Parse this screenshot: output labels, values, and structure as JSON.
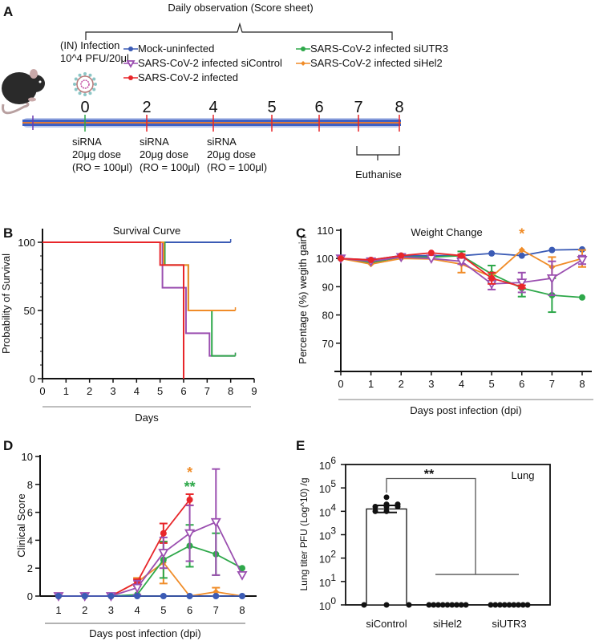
{
  "panel_labels": {
    "a": "A",
    "b": "B",
    "c": "C",
    "d": "D",
    "e": "E"
  },
  "legend": [
    {
      "name": "Mock-uninfected",
      "color": "#3b5bb5",
      "marker": "circle"
    },
    {
      "name": "SARS-CoV-2 infected siControl",
      "color": "#9b4fb0",
      "marker": "triangle-down-open"
    },
    {
      "name": "SARS-CoV-2 infected",
      "color": "#e8262a",
      "marker": "circle"
    },
    {
      "name": "SARS-CoV-2 infected siUTR3",
      "color": "#2ea84a",
      "marker": "circle"
    },
    {
      "name": "SARS-CoV-2 infected siHel2",
      "color": "#f08c28",
      "marker": "diamond"
    }
  ],
  "panel_a": {
    "observation_title": "Daily observation (Score sheet)",
    "infection_line1": "(IN) Infection",
    "infection_line2": "10^4 PFU/20μl",
    "timeline_days": [
      "0",
      "2",
      "4",
      "5",
      "6",
      "7",
      "8"
    ],
    "sirna_doses": [
      {
        "l1": "siRNA",
        "l2": "20μg dose",
        "l3": "(RO = 100μl)"
      },
      {
        "l1": "siRNA",
        "l2": "20μg dose",
        "l3": "(RO = 100μl)"
      },
      {
        "l1": "siRNA",
        "l2": "20μg dose",
        "l3": "(RO = 100μl)"
      }
    ],
    "euthanise": "Euthanise",
    "colors": {
      "bar": "#3d5fc4",
      "bar_center": "#e07a3a",
      "tick": "#e8262a",
      "day0_tick": "#2ea84a"
    }
  },
  "chart_data": [
    {
      "type": "line",
      "style": "step",
      "title": "Survival Curve",
      "xlabel": "Days",
      "ylabel": "Probability of Survival",
      "xlim": [
        0,
        9
      ],
      "ylim": [
        0,
        100
      ],
      "xticks": [
        0,
        1,
        2,
        3,
        4,
        5,
        6,
        7,
        8,
        9
      ],
      "yticks": [
        0,
        50,
        100
      ],
      "series": [
        {
          "name": "Mock-uninfected",
          "x": [
            0,
            8
          ],
          "y": [
            100,
            100
          ]
        },
        {
          "name": "SARS-CoV-2 infected siControl",
          "x": [
            0,
            5.1,
            6.1,
            7.1,
            8.2
          ],
          "y": [
            100,
            66.7,
            33.3,
            16.7,
            16.7
          ]
        },
        {
          "name": "SARS-CoV-2 infected siUTR3",
          "x": [
            0,
            5.2,
            6.2,
            7.2,
            8.2
          ],
          "y": [
            100,
            83.3,
            50,
            16.7,
            16.7
          ]
        },
        {
          "name": "SARS-CoV-2 infected siHel2",
          "x": [
            0,
            5.15,
            6.2,
            8.2
          ],
          "y": [
            100,
            83.3,
            50,
            50
          ]
        },
        {
          "name": "SARS-CoV-2 infected",
          "x": [
            0,
            5.0,
            6.0
          ],
          "y": [
            100,
            83.3,
            0
          ]
        }
      ]
    },
    {
      "type": "line",
      "title": "Weight Change",
      "xlabel": "Days post infection (dpi)",
      "ylabel": "Percentage (%) wegith gain",
      "xlim": [
        0,
        8
      ],
      "ylim": [
        60,
        110
      ],
      "xticks": [
        0,
        1,
        2,
        3,
        4,
        5,
        6,
        7,
        8
      ],
      "yticks": [
        70,
        80,
        90,
        100,
        110
      ],
      "annotations": [
        {
          "text": "*",
          "x": 6,
          "y": 107,
          "color": "#f08c28"
        }
      ],
      "series": [
        {
          "name": "Mock-uninfected",
          "y": [
            100,
            99.5,
            101,
            101,
            101,
            101.8,
            101,
            103,
            103.2
          ],
          "err": [
            0,
            0,
            0,
            0,
            0,
            0,
            0,
            0,
            0
          ]
        },
        {
          "name": "SARS-CoV-2 infected siUTR3",
          "y": [
            100,
            98.5,
            100.5,
            100.5,
            101,
            94.5,
            89.5,
            87,
            86.2
          ],
          "err": [
            0,
            0,
            0,
            0,
            1.5,
            3,
            3,
            6,
            0
          ]
        },
        {
          "name": "SARS-CoV-2 infected siHel2",
          "y": [
            100,
            98,
            100,
            99.8,
            98,
            93.5,
            103,
            97,
            100
          ],
          "err": [
            0,
            0,
            0,
            0,
            3,
            1.5,
            0,
            3.5,
            3
          ]
        },
        {
          "name": "SARS-CoV-2 infected siControl",
          "y": [
            100,
            99,
            100.5,
            100,
            99,
            91,
            91.5,
            93,
            99.5
          ],
          "err": [
            0,
            0,
            0,
            0,
            1,
            2,
            3.5,
            6,
            1.5
          ]
        },
        {
          "name": "SARS-CoV-2 infected",
          "y": [
            100,
            99.5,
            101,
            102,
            101,
            93,
            90,
            null,
            null
          ],
          "err": [
            0,
            0,
            0,
            0,
            0.5,
            2,
            0.5,
            0,
            0
          ]
        }
      ]
    },
    {
      "type": "line",
      "xlabel": "Days post infection (dpi)",
      "ylabel": "Clinical Score",
      "xlim": [
        1,
        8
      ],
      "ylim": [
        0,
        10
      ],
      "xticks": [
        1,
        2,
        3,
        4,
        5,
        6,
        7,
        8
      ],
      "yticks": [
        0,
        2,
        4,
        6,
        8,
        10
      ],
      "annotations": [
        {
          "text": "*",
          "x": 6,
          "y": 8.5,
          "color": "#f08c28"
        },
        {
          "text": "**",
          "x": 6,
          "y": 7.8,
          "color": "#2ea84a"
        }
      ],
      "series": [
        {
          "name": "SARS-CoV-2 infected siHel2",
          "y": [
            0,
            0,
            0,
            1,
            2.4,
            0,
            0.3,
            0
          ],
          "err": [
            0,
            0,
            0,
            0.3,
            1.5,
            0,
            0.3,
            0
          ]
        },
        {
          "name": "SARS-CoV-2 infected siUTR3",
          "y": [
            0,
            0,
            0,
            0.1,
            2.6,
            3.6,
            3,
            2
          ],
          "err": [
            0,
            0,
            0,
            0,
            1.3,
            1.5,
            1.5,
            0
          ]
        },
        {
          "name": "SARS-CoV-2 infected",
          "y": [
            0,
            0,
            0,
            1,
            4.5,
            6.9,
            null,
            null
          ],
          "err": [
            0,
            0,
            0,
            0.2,
            0.7,
            0.4,
            0,
            0
          ]
        },
        {
          "name": "SARS-CoV-2 infected siControl",
          "y": [
            0,
            0,
            0,
            0.6,
            3.1,
            4.5,
            5.3,
            1.5
          ],
          "err": [
            0,
            0,
            0,
            0.5,
            1.1,
            2,
            3.8,
            0
          ]
        },
        {
          "name": "Mock-uninfected",
          "y": [
            0,
            0,
            0,
            0,
            0,
            0,
            0,
            0
          ],
          "err": [
            0,
            0,
            0,
            0,
            0,
            0,
            0,
            0
          ]
        }
      ]
    },
    {
      "type": "bar",
      "scale": "log",
      "ylabel": "Lung titer PFU (Log^10) /g",
      "annotation": "Lung",
      "significance": "**",
      "categories": [
        "siControl",
        "siHel2",
        "siUTR3"
      ],
      "ylim_exponent": [
        0,
        6
      ],
      "ytick_base": "10",
      "ytick_exponents": [
        "0",
        "1",
        "2",
        "3",
        "4",
        "5",
        "6"
      ],
      "bar_log_values": [
        4.1,
        0,
        0
      ],
      "bar_log_sd": [
        0.15,
        0,
        0
      ],
      "points_log": [
        [
          4.6,
          4.3,
          4.3,
          4.2,
          4.2,
          4.2,
          4.0,
          4.0,
          0,
          0,
          0
        ],
        [
          0,
          0,
          0,
          0,
          0,
          0,
          0,
          0,
          0
        ],
        [
          0,
          0,
          0,
          0,
          0,
          0,
          0,
          0,
          0
        ]
      ]
    }
  ]
}
